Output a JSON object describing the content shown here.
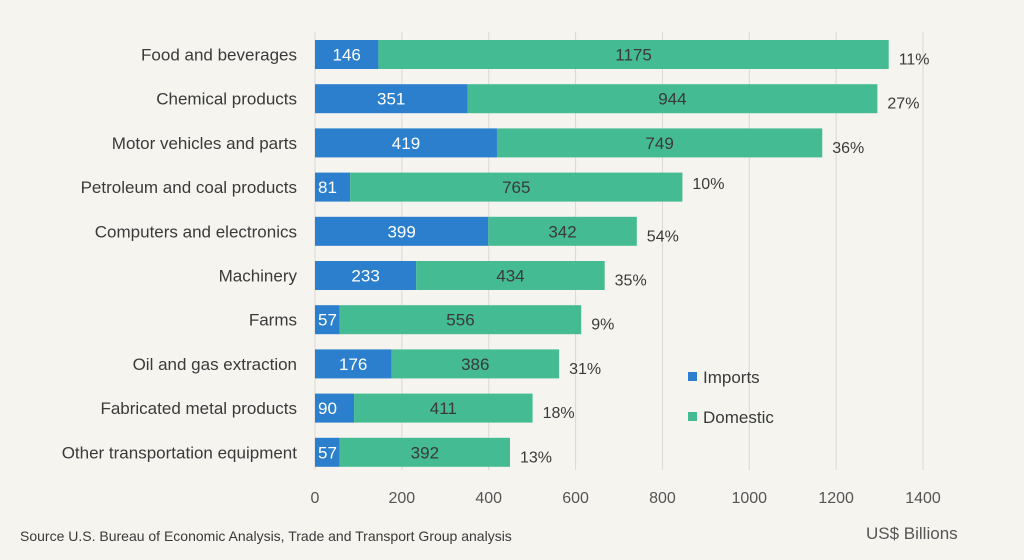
{
  "chart_data": {
    "type": "bar",
    "orientation": "horizontal",
    "stacked": true,
    "categories": [
      "Food and beverages",
      "Chemical products",
      "Motor vehicles and parts",
      "Petroleum and coal products",
      "Computers and electronics",
      "Machinery",
      "Farms",
      "Oil and gas extraction",
      "Fabricated metal products",
      "Other transportation equipment"
    ],
    "series": [
      {
        "name": "Imports",
        "color": "#2b7fcc",
        "label_color": "#ffffff",
        "values": [
          146,
          351,
          419,
          81,
          399,
          233,
          57,
          176,
          90,
          57
        ]
      },
      {
        "name": "Domestic",
        "color": "#44bb92",
        "label_color": "#3a3a3a",
        "values": [
          1175,
          944,
          749,
          765,
          342,
          434,
          556,
          386,
          411,
          392
        ]
      }
    ],
    "import_share_labels": [
      "11%",
      "27%",
      "36%",
      "10%",
      "54%",
      "35%",
      "9%",
      "31%",
      "18%",
      "13%"
    ],
    "xlim": [
      0,
      1400
    ],
    "xticks": [
      0,
      200,
      400,
      600,
      800,
      1000,
      1200,
      1400
    ],
    "xlabel": "US$ Billions",
    "grid": true,
    "legend_position": "lower-right"
  },
  "source": "Source U.S. Bureau of Economic Analysis, Trade and Transport Group analysis"
}
